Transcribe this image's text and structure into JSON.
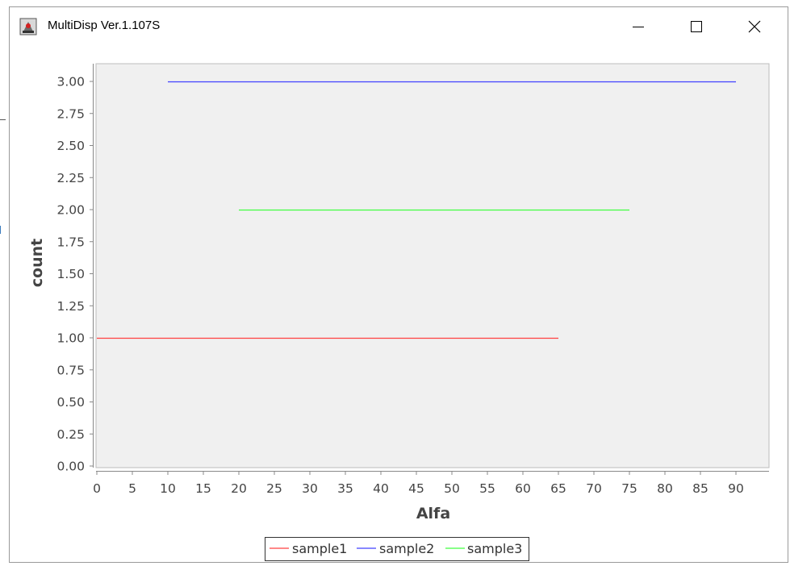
{
  "window": {
    "title": "MultiDisp Ver.1.107S",
    "controls": [
      "minimize",
      "maximize",
      "close"
    ]
  },
  "chart_data": {
    "type": "line",
    "title": "",
    "xlabel": "Alfa",
    "ylabel": "count",
    "xlim": [
      0,
      95
    ],
    "ylim": [
      0,
      3.15
    ],
    "xticks": [
      "0",
      "5",
      "10",
      "15",
      "20",
      "25",
      "30",
      "35",
      "40",
      "45",
      "50",
      "55",
      "60",
      "65",
      "70",
      "75",
      "80",
      "85",
      "90"
    ],
    "yticks": [
      "0.00",
      "0.25",
      "0.50",
      "0.75",
      "1.00",
      "1.25",
      "1.50",
      "1.75",
      "2.00",
      "2.25",
      "2.50",
      "2.75",
      "3.00"
    ],
    "grid": false,
    "legend_position": "bottom",
    "plot_background": "#f0f0f0",
    "series": [
      {
        "name": "sample1",
        "color": "#ff4040",
        "x": [
          0,
          65
        ],
        "y": [
          1,
          1
        ]
      },
      {
        "name": "sample2",
        "color": "#4040ff",
        "x": [
          10,
          90
        ],
        "y": [
          3,
          3
        ]
      },
      {
        "name": "sample3",
        "color": "#40ff40",
        "x": [
          20,
          75
        ],
        "y": [
          2,
          2
        ]
      }
    ]
  }
}
